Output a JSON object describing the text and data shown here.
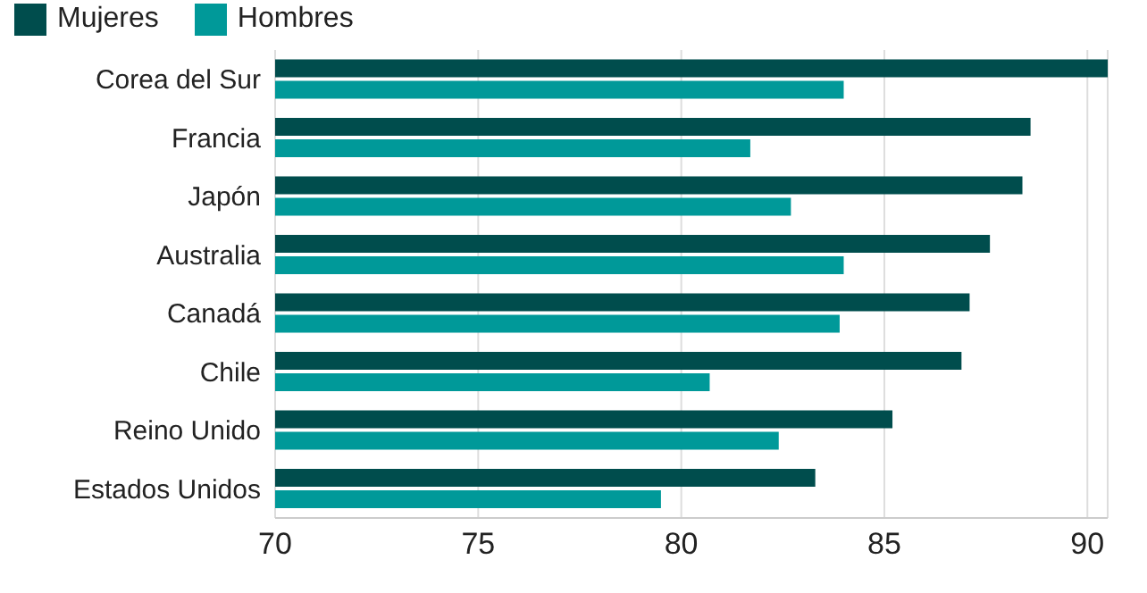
{
  "chart_data": {
    "type": "bar",
    "orientation": "horizontal",
    "categories": [
      "Corea del Sur",
      "Francia",
      "Japón",
      "Australia",
      "Canadá",
      "Chile",
      "Reino Unido",
      "Estados Unidos"
    ],
    "series": [
      {
        "name": "Mujeres",
        "color": "#004d4d",
        "values": [
          90.5,
          88.6,
          88.4,
          87.6,
          87.1,
          86.9,
          85.2,
          83.3
        ]
      },
      {
        "name": "Hombres",
        "color": "#009999",
        "values": [
          84.0,
          81.7,
          82.7,
          84.0,
          83.9,
          80.7,
          82.4,
          79.5
        ]
      }
    ],
    "xlim": [
      70,
      90.5
    ],
    "xticks": [
      70,
      75,
      80,
      85,
      90
    ],
    "grid": "x",
    "legend": "top left"
  }
}
